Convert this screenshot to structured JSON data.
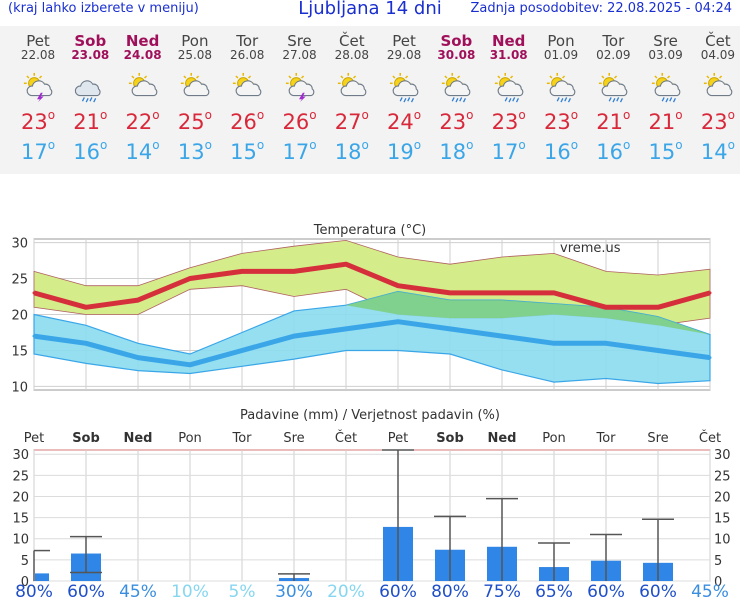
{
  "header": {
    "left": "(kraj lahko izberete v meniju)",
    "title": "Ljubljana 14 dni",
    "right": "Zadnja posodobitev: 22.08.2025 - 04:24"
  },
  "deg_symbol": "o",
  "days": [
    {
      "name": "Pet",
      "date": "22.08",
      "weekend": false,
      "icon": "sun-cloud-thunder-icon",
      "tmax": "23",
      "tmin": "17"
    },
    {
      "name": "Sob",
      "date": "23.08",
      "weekend": true,
      "icon": "cloud-rain-icon",
      "tmax": "21",
      "tmin": "16"
    },
    {
      "name": "Ned",
      "date": "24.08",
      "weekend": true,
      "icon": "sun-cloud-icon",
      "tmax": "22",
      "tmin": "14"
    },
    {
      "name": "Pon",
      "date": "25.08",
      "weekend": false,
      "icon": "sun-cloud-icon",
      "tmax": "25",
      "tmin": "13"
    },
    {
      "name": "Tor",
      "date": "26.08",
      "weekend": false,
      "icon": "sun-cloud-icon",
      "tmax": "26",
      "tmin": "15"
    },
    {
      "name": "Sre",
      "date": "27.08",
      "weekend": false,
      "icon": "sun-cloud-thunder-icon",
      "tmax": "26",
      "tmin": "17"
    },
    {
      "name": "Čet",
      "date": "28.08",
      "weekend": false,
      "icon": "sun-cloud-icon",
      "tmax": "27",
      "tmin": "18"
    },
    {
      "name": "Pet",
      "date": "29.08",
      "weekend": false,
      "icon": "sun-cloud-rain-icon",
      "tmax": "24",
      "tmin": "19"
    },
    {
      "name": "Sob",
      "date": "30.08",
      "weekend": true,
      "icon": "sun-cloud-rain-icon",
      "tmax": "23",
      "tmin": "18"
    },
    {
      "name": "Ned",
      "date": "31.08",
      "weekend": true,
      "icon": "sun-cloud-rain-icon",
      "tmax": "23",
      "tmin": "17"
    },
    {
      "name": "Pon",
      "date": "01.09",
      "weekend": false,
      "icon": "sun-cloud-rain-icon",
      "tmax": "23",
      "tmin": "16"
    },
    {
      "name": "Tor",
      "date": "02.09",
      "weekend": false,
      "icon": "sun-cloud-rain-icon",
      "tmax": "21",
      "tmin": "16"
    },
    {
      "name": "Sre",
      "date": "03.09",
      "weekend": false,
      "icon": "sun-cloud-rain-icon",
      "tmax": "21",
      "tmin": "15"
    },
    {
      "name": "Čet",
      "date": "04.09",
      "weekend": false,
      "icon": "sun-cloud-icon",
      "tmax": "23",
      "tmin": "14"
    }
  ],
  "colors": {
    "max_line": "#d62f3c",
    "max_band": "#d4ec8a",
    "max_band_stroke": "#b06060",
    "min_line": "#3aa6e8",
    "min_band": "#8adcf0",
    "min_band_stroke": "#3aa6e8",
    "overlap": "#7ccf7c",
    "weekend": "#a0105a",
    "bar": "#2f86e6",
    "whisker": "#555555",
    "brand": "#1a2fd0"
  },
  "chart_data": [
    {
      "type": "line",
      "title": "Temperatura (°C)",
      "watermark": "vreme.us",
      "ylim": [
        9.5,
        30.5
      ],
      "yticks": [
        10,
        15,
        20,
        25,
        30
      ],
      "categories": [
        "22.08",
        "23.08",
        "24.08",
        "25.08",
        "26.08",
        "27.08",
        "28.08",
        "29.08",
        "30.08",
        "31.08",
        "01.09",
        "02.09",
        "03.09",
        "04.09"
      ],
      "series": [
        {
          "key": "max",
          "values": [
            23,
            21,
            22,
            25,
            26,
            26,
            27,
            24,
            23,
            23,
            23,
            21,
            21,
            23
          ]
        },
        {
          "key": "min",
          "values": [
            17,
            16,
            14,
            13,
            15,
            17,
            18,
            19,
            18,
            17,
            16,
            16,
            15,
            14
          ]
        }
      ],
      "bands": [
        {
          "key": "max_range",
          "upper": [
            26,
            24,
            24,
            26.5,
            28.5,
            29.5,
            30.3,
            28,
            27,
            28,
            28.5,
            26,
            25.5,
            26.3
          ],
          "lower": [
            21,
            20,
            20,
            23.5,
            24,
            22.5,
            23.5,
            20,
            19.5,
            19.5,
            20,
            19.5,
            18.5,
            19.5
          ]
        },
        {
          "key": "min_range",
          "upper": [
            20,
            18.5,
            16,
            14.5,
            17.5,
            20.5,
            21.3,
            23.2,
            22,
            22,
            21.5,
            21,
            19.7,
            17.2
          ],
          "lower": [
            14.5,
            13.2,
            12.2,
            11.8,
            12.8,
            13.8,
            15,
            15,
            14.5,
            12.3,
            10.6,
            11.1,
            10.4,
            10.8
          ]
        }
      ]
    },
    {
      "type": "bar",
      "title": "Padavine (mm) / Verjetnost padavin (%)",
      "ylim": [
        0,
        31
      ],
      "yticks": [
        0,
        5,
        10,
        15,
        20,
        25,
        30
      ],
      "day_labels": [
        "Pet",
        "Sob",
        "Ned",
        "Pon",
        "Tor",
        "Sre",
        "Čet",
        "Pet",
        "Sob",
        "Ned",
        "Pon",
        "Tor",
        "Sre",
        "Čet"
      ],
      "values": [
        1.8,
        6.5,
        0,
        0,
        0,
        0.7,
        0,
        12.8,
        7.4,
        8.1,
        3.3,
        4.8,
        4.3,
        0
      ],
      "err_high": [
        7.2,
        10.5,
        0,
        0,
        0,
        1.7,
        0,
        31,
        15.3,
        19.5,
        9,
        11,
        14.6,
        0
      ],
      "err_low": [
        0,
        2,
        0,
        0,
        0,
        0,
        0,
        0,
        0,
        0,
        0,
        0,
        0,
        0
      ],
      "probabilities": [
        "80%",
        "60%",
        "45%",
        "10%",
        "5%",
        "30%",
        "20%",
        "60%",
        "80%",
        "75%",
        "65%",
        "60%",
        "60%",
        "45%"
      ],
      "prob_colors": [
        "#1f4fc8",
        "#1f4fc8",
        "#3a8ee0",
        "#86d6f0",
        "#86d6f0",
        "#3a8ee0",
        "#86d6f0",
        "#1f4fc8",
        "#1f4fc8",
        "#1f4fc8",
        "#1f4fc8",
        "#1f4fc8",
        "#1f4fc8",
        "#3a8ee0"
      ]
    }
  ]
}
